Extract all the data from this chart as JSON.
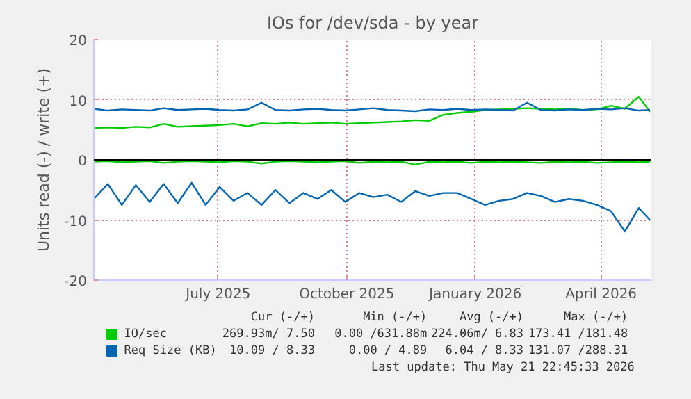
{
  "chart_data": {
    "type": "line",
    "title": "IOs for /dev/sda - by year",
    "ylabel": "Units read (-) / write (+)",
    "x": [
      "2025-04-18",
      "2025-04-28",
      "2025-05-08",
      "2025-05-18",
      "2025-05-28",
      "2025-06-07",
      "2025-06-17",
      "2025-06-27",
      "2025-07-07",
      "2025-07-17",
      "2025-07-27",
      "2025-08-06",
      "2025-08-16",
      "2025-08-26",
      "2025-09-05",
      "2025-09-15",
      "2025-09-25",
      "2025-10-05",
      "2025-10-15",
      "2025-10-25",
      "2025-11-04",
      "2025-11-14",
      "2025-11-24",
      "2025-12-04",
      "2025-12-14",
      "2025-12-24",
      "2026-01-03",
      "2026-01-13",
      "2026-01-23",
      "2026-02-02",
      "2026-02-12",
      "2026-02-22",
      "2026-03-04",
      "2026-03-14",
      "2026-03-24",
      "2026-04-03",
      "2026-04-13",
      "2026-04-23",
      "2026-05-03",
      "2026-05-13",
      "2026-05-21"
    ],
    "xlim": [
      "2025-04-18",
      "2026-05-22"
    ],
    "xticks": [
      {
        "value": "2025-07-16",
        "label": "July 2025"
      },
      {
        "value": "2025-10-16",
        "label": "October 2025"
      },
      {
        "value": "2026-01-16",
        "label": "January 2026"
      },
      {
        "value": "2026-04-16",
        "label": "April 2026"
      }
    ],
    "ylim": [
      -20,
      20
    ],
    "yticks": [
      -20,
      -10,
      0,
      10,
      20
    ],
    "grid": true,
    "legend": "bottom",
    "ref_lines": [
      {
        "axis": "y",
        "value": 0,
        "color": "#000000"
      }
    ],
    "series": [
      {
        "name": "IO/sec",
        "color": "#00cc00",
        "values": [
          5.3,
          5.4,
          5.3,
          5.5,
          5.4,
          6.0,
          5.5,
          5.6,
          5.7,
          5.8,
          6.0,
          5.6,
          6.1,
          6.0,
          6.2,
          6.0,
          6.1,
          6.2,
          6.0,
          6.1,
          6.2,
          6.3,
          6.4,
          6.6,
          6.5,
          7.5,
          7.8,
          8.0,
          8.3,
          8.4,
          8.5,
          8.6,
          8.5,
          8.4,
          8.5,
          8.3,
          8.4,
          9.0,
          8.5,
          10.5,
          8.0
        ]
      },
      {
        "color": "#00cc00",
        "values": [
          -0.3,
          -0.2,
          -0.4,
          -0.3,
          -0.2,
          -0.5,
          -0.3,
          -0.2,
          -0.3,
          -0.4,
          -0.2,
          -0.3,
          -0.6,
          -0.3,
          -0.2,
          -0.3,
          -0.4,
          -0.3,
          -0.2,
          -0.5,
          -0.3,
          -0.4,
          -0.3,
          -0.8,
          -0.3,
          -0.4,
          -0.3,
          -0.5,
          -0.3,
          -0.4,
          -0.3,
          -0.4,
          -0.5,
          -0.3,
          -0.4,
          -0.3,
          -0.5,
          -0.4,
          -0.3,
          -0.4,
          -0.3
        ]
      },
      {
        "name": "Req Size (KB)",
        "color": "#0066b3",
        "values": [
          8.5,
          8.2,
          8.4,
          8.3,
          8.2,
          8.6,
          8.3,
          8.4,
          8.5,
          8.3,
          8.2,
          8.4,
          9.5,
          8.3,
          8.2,
          8.4,
          8.5,
          8.3,
          8.2,
          8.4,
          8.6,
          8.3,
          8.2,
          8.1,
          8.4,
          8.3,
          8.5,
          8.3,
          8.4,
          8.3,
          8.2,
          9.5,
          8.3,
          8.2,
          8.4,
          8.3,
          8.5,
          8.4,
          8.6,
          8.2,
          8.3
        ]
      },
      {
        "color": "#0066b3",
        "values": [
          -6.5,
          -4.0,
          -7.5,
          -4.2,
          -7.0,
          -4.0,
          -7.2,
          -3.8,
          -7.5,
          -4.5,
          -6.8,
          -5.5,
          -7.5,
          -5.0,
          -7.2,
          -5.5,
          -6.5,
          -5.0,
          -7.0,
          -5.5,
          -6.2,
          -5.8,
          -7.0,
          -5.2,
          -6.0,
          -5.5,
          -5.5,
          -6.5,
          -7.5,
          -6.8,
          -6.5,
          -5.5,
          -6.0,
          -7.0,
          -6.5,
          -6.8,
          -7.5,
          -8.5,
          -11.9,
          -8.0,
          -10.0
        ]
      }
    ],
    "annotations": [
      "Cur (-/+)",
      "Min (-/+)",
      "Avg (-/+)",
      "Max (-/+)",
      "269.93m/ 7.50",
      "0.00 /631.88m",
      "224.06m/ 6.83",
      "173.41 /181.48",
      "10.09 / 8.33",
      "0.00 / 4.89",
      "6.04 / 8.33",
      "131.07 /288.31",
      "Last update: Thu May 21 22:45:33 2026"
    ]
  }
}
